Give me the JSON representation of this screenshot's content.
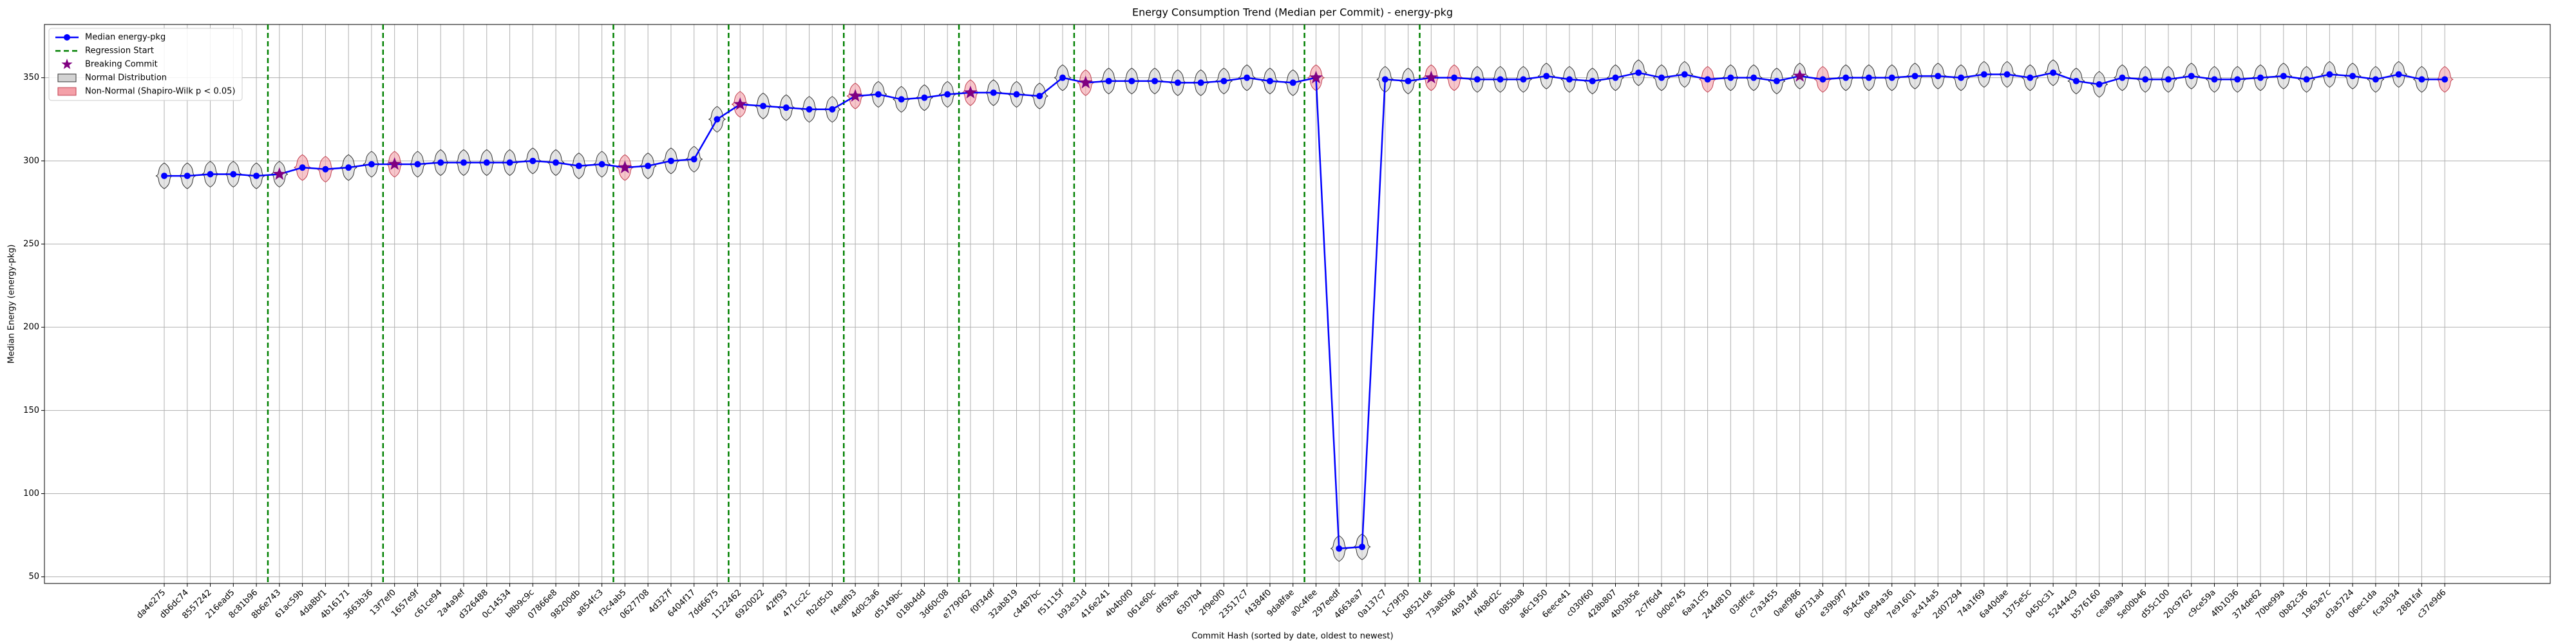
{
  "chart_data": {
    "type": "line",
    "title": "Energy Consumption Trend (Median per Commit) - energy-pkg",
    "x_label": "Commit Hash (sorted by date, oldest to newest)",
    "y_label": "Median Energy (energy-pkg)",
    "categories": [
      "da4e275",
      "db6dc74",
      "8557242",
      "216ead5",
      "8c81b96",
      "8b6e743",
      "61ac59b",
      "4da8bf1",
      "4b16171",
      "3663b36",
      "13f7ef0",
      "1657e9f",
      "c61ce94",
      "2a4a9ef",
      "d326488",
      "0c14534",
      "b8b9c9c",
      "07866e8",
      "98200db",
      "a854fc3",
      "f3c4ab5",
      "0627708",
      "4d327f",
      "6404f17",
      "7dd6675",
      "1122462",
      "6920022",
      "42ff93",
      "471cc2c",
      "fb2d5cb",
      "f4edfb3",
      "4d0c3a6",
      "d5149bc",
      "018b4dd",
      "3d60c08",
      "e779062",
      "f0f34df",
      "32ab819",
      "c4487bc",
      "f51115f",
      "b93e31d",
      "416e241",
      "4b4b0f0",
      "061e60c",
      "df63be",
      "6307b4",
      "2f9e0f0",
      "23517c7",
      "f4384f0",
      "9da8fae",
      "a0c4fee",
      "297eedf",
      "4663ea7",
      "0a137c7",
      "1c79f30",
      "b8521de",
      "73a85b6",
      "4b914df",
      "f4b8d2c",
      "085ba8",
      "a6c1950",
      "6eece41",
      "c030f60",
      "428b807",
      "4b03b5e",
      "2c7f6d4",
      "0d0e745",
      "6aa1cf5",
      "244d810",
      "03dffce",
      "c7a3455",
      "0aef986",
      "6d731ad",
      "e39b9f7",
      "954c4fa",
      "0e94a36",
      "7e91601",
      "ac414a5",
      "2d07294",
      "74a1f69",
      "6a40dae",
      "1375e5c",
      "0450c31",
      "52444c9",
      "b576160",
      "cea89aa",
      "5e00b46",
      "d55c100",
      "20c9762",
      "c9ce59a",
      "4fb1036",
      "374de62",
      "70be99a",
      "0b82c36",
      "1963e7c",
      "d3a5724",
      "06ec1da",
      "fca3034",
      "2881faf",
      "c37e9d6"
    ],
    "series": [
      {
        "name": "Median energy-pkg",
        "color": "#0000ff",
        "values": [
          291,
          291,
          292,
          292,
          291,
          292,
          296,
          295,
          296,
          298,
          298,
          298,
          299,
          299,
          299,
          299,
          300,
          299,
          297,
          298,
          296,
          297,
          300,
          301,
          325,
          334,
          333,
          332,
          331,
          331,
          339,
          340,
          337,
          338,
          340,
          341,
          341,
          340,
          339,
          350,
          347,
          348,
          348,
          348,
          347,
          347,
          348,
          350,
          348,
          347,
          350,
          67,
          68,
          349,
          348,
          350,
          350,
          349,
          349,
          349,
          351,
          349,
          348,
          350,
          353,
          350,
          352,
          349,
          350,
          350,
          348,
          351,
          349,
          350,
          350,
          350,
          351,
          351,
          350,
          352,
          352,
          350,
          353,
          348,
          346,
          350,
          349,
          349,
          351,
          349,
          349,
          350,
          351,
          349,
          352,
          351,
          349,
          352,
          349,
          349
        ]
      }
    ],
    "normal": [
      true,
      true,
      true,
      true,
      true,
      true,
      false,
      false,
      true,
      true,
      false,
      true,
      true,
      true,
      true,
      true,
      true,
      true,
      true,
      true,
      false,
      true,
      true,
      true,
      true,
      false,
      true,
      true,
      true,
      true,
      false,
      true,
      true,
      true,
      true,
      false,
      true,
      true,
      true,
      true,
      false,
      true,
      true,
      true,
      true,
      true,
      true,
      true,
      true,
      true,
      false,
      true,
      true,
      true,
      true,
      false,
      false,
      true,
      true,
      true,
      true,
      true,
      true,
      true,
      true,
      true,
      true,
      false,
      true,
      true,
      true,
      true,
      false,
      true,
      true,
      true,
      true,
      true,
      true,
      true,
      true,
      true,
      true,
      true,
      true,
      true,
      true,
      true,
      true,
      true,
      true,
      true,
      true,
      true,
      true,
      true,
      true,
      true,
      true,
      false
    ],
    "regression_starts": [
      "8b6e743",
      "13f7ef0",
      "f3c4ab5",
      "1122462",
      "f4edfb3",
      "e779062",
      "b93e31d",
      "a0c4fee",
      "b8521de"
    ],
    "breaking_commits": [
      "8b6e743",
      "13f7ef0",
      "f3c4ab5",
      "1122462",
      "f4edfb3",
      "e779062",
      "b93e31d",
      "a0c4fee",
      "b8521de",
      "0aef986"
    ],
    "legend": {
      "median": "Median energy-pkg",
      "regression": "Regression Start",
      "breaking": "Breaking Commit",
      "normal": "Normal Distribution",
      "non_normal": "Non-Normal (Shapiro-Wilk p < 0.05)"
    },
    "ylim": [
      46,
      382
    ],
    "yticks": [
      50,
      100,
      150,
      200,
      250,
      300,
      350
    ],
    "grid": true,
    "legend_position": "upper left"
  }
}
